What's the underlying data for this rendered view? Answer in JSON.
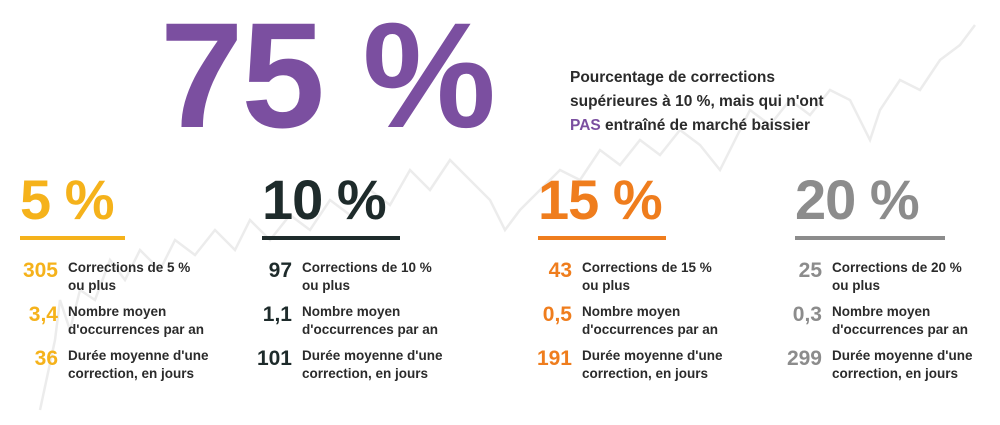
{
  "colors": {
    "purple": "#7b4fa0",
    "yellow": "#f5b21b",
    "dark": "#1e2b2b",
    "orange": "#ef7d1d",
    "gray": "#8c8c8c",
    "text": "#2b2b2b"
  },
  "hero": {
    "value": "75 %",
    "desc_line1": "Pourcentage de corrections",
    "desc_line2": "supérieures à 10 %, mais qui n'ont",
    "desc_pas": "PAS",
    "desc_line3_rest": " entraîné de marché baissier"
  },
  "columns": [
    {
      "pct": "5 %",
      "stats": [
        {
          "value": "305",
          "line1": "Corrections de 5 %",
          "line2": "ou plus"
        },
        {
          "value": "3,4",
          "line1": "Nombre moyen",
          "line2": "d'occurrences par an"
        },
        {
          "value": "36",
          "line1": "Durée moyenne d'une",
          "line2": "correction, en jours"
        }
      ]
    },
    {
      "pct": "10 %",
      "stats": [
        {
          "value": "97",
          "line1": "Corrections de 10 %",
          "line2": "ou plus"
        },
        {
          "value": "1,1",
          "line1": "Nombre moyen",
          "line2": "d'occurrences par an"
        },
        {
          "value": "101",
          "line1": "Durée moyenne d'une",
          "line2": "correction, en jours"
        }
      ]
    },
    {
      "pct": "15 %",
      "stats": [
        {
          "value": "43",
          "line1": "Corrections de 15 %",
          "line2": "ou plus"
        },
        {
          "value": "0,5",
          "line1": "Nombre moyen",
          "line2": "d'occurrences par an"
        },
        {
          "value": "191",
          "line1": "Durée moyenne d'une",
          "line2": "correction, en jours"
        }
      ]
    },
    {
      "pct": "20 %",
      "stats": [
        {
          "value": "25",
          "line1": "Corrections de 20 %",
          "line2": "ou plus"
        },
        {
          "value": "0,3",
          "line1": "Nombre moyen",
          "line2": "d'occurrences par an"
        },
        {
          "value": "299",
          "line1": "Durée moyenne d'une",
          "line2": "correction, en jours"
        }
      ]
    }
  ]
}
